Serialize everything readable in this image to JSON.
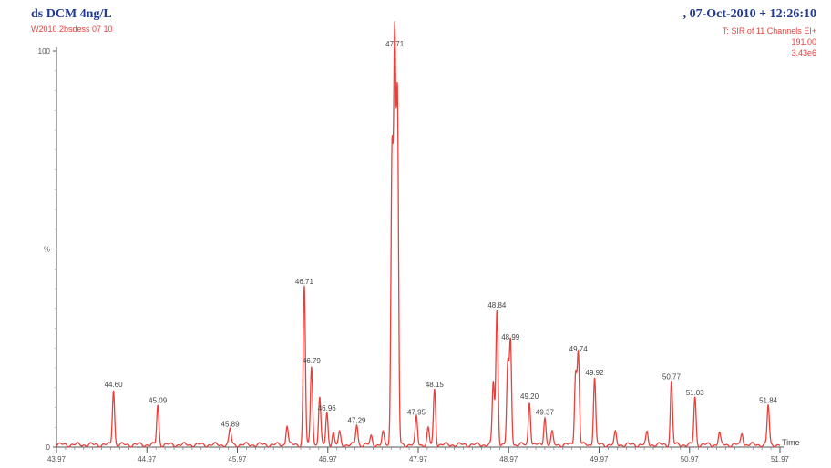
{
  "header": {
    "sample_title": "ds DCM 4ng/L",
    "datetime": ", 07-Oct-2010 + 12:26:10",
    "file_label": "W2010 2bsdess 07 10",
    "channel_info": "T: SIR of 11 Channels EI+",
    "mass": "191.00",
    "intensity": "3.43e6"
  },
  "chart_data": {
    "type": "line",
    "xlabel": "Time",
    "ylabel": "%",
    "xlim": [
      43.97,
      51.97
    ],
    "ylim": [
      0,
      100
    ],
    "x_ticks": [
      "43.97",
      "44.97",
      "45.97",
      "46.97",
      "47.97",
      "48.97",
      "49.97",
      "50.97",
      "51.97"
    ],
    "y_ticks": [
      "0",
      "%",
      "100"
    ],
    "peaks": [
      {
        "x": 44.6,
        "y": 14,
        "label": "44.60"
      },
      {
        "x": 45.09,
        "y": 10,
        "label": "45.09"
      },
      {
        "x": 45.89,
        "y": 4,
        "label": "45.89"
      },
      {
        "x": 46.71,
        "y": 40,
        "label": "46.71"
      },
      {
        "x": 46.79,
        "y": 20,
        "label": "46.79"
      },
      {
        "x": 46.96,
        "y": 8,
        "label": "46.96"
      },
      {
        "x": 47.29,
        "y": 5,
        "label": "47.29"
      },
      {
        "x": 47.71,
        "y": 100,
        "label": "47.71"
      },
      {
        "x": 47.95,
        "y": 7,
        "label": "47.95"
      },
      {
        "x": 48.15,
        "y": 14,
        "label": "48.15"
      },
      {
        "x": 48.84,
        "y": 34,
        "label": "48.84"
      },
      {
        "x": 48.99,
        "y": 26,
        "label": "48.99"
      },
      {
        "x": 49.2,
        "y": 11,
        "label": "49.20"
      },
      {
        "x": 49.37,
        "y": 7,
        "label": "49.37"
      },
      {
        "x": 49.74,
        "y": 23,
        "label": "49.74"
      },
      {
        "x": 49.92,
        "y": 17,
        "label": "49.92"
      },
      {
        "x": 50.77,
        "y": 16,
        "label": "50.77"
      },
      {
        "x": 51.03,
        "y": 12,
        "label": "51.03"
      },
      {
        "x": 51.84,
        "y": 10,
        "label": "51.84"
      }
    ],
    "minor_peaks": [
      {
        "x": 46.52,
        "y": 5
      },
      {
        "x": 46.88,
        "y": 12
      },
      {
        "x": 47.03,
        "y": 3
      },
      {
        "x": 47.1,
        "y": 3
      },
      {
        "x": 47.45,
        "y": 2
      },
      {
        "x": 47.58,
        "y": 3
      },
      {
        "x": 47.68,
        "y": 73
      },
      {
        "x": 47.74,
        "y": 86
      },
      {
        "x": 48.08,
        "y": 4
      },
      {
        "x": 48.8,
        "y": 16
      },
      {
        "x": 48.96,
        "y": 20
      },
      {
        "x": 49.45,
        "y": 3
      },
      {
        "x": 49.71,
        "y": 18
      },
      {
        "x": 50.15,
        "y": 3
      },
      {
        "x": 50.5,
        "y": 3
      },
      {
        "x": 51.3,
        "y": 3
      },
      {
        "x": 51.55,
        "y": 3
      }
    ],
    "line_color": "#e8413c"
  }
}
